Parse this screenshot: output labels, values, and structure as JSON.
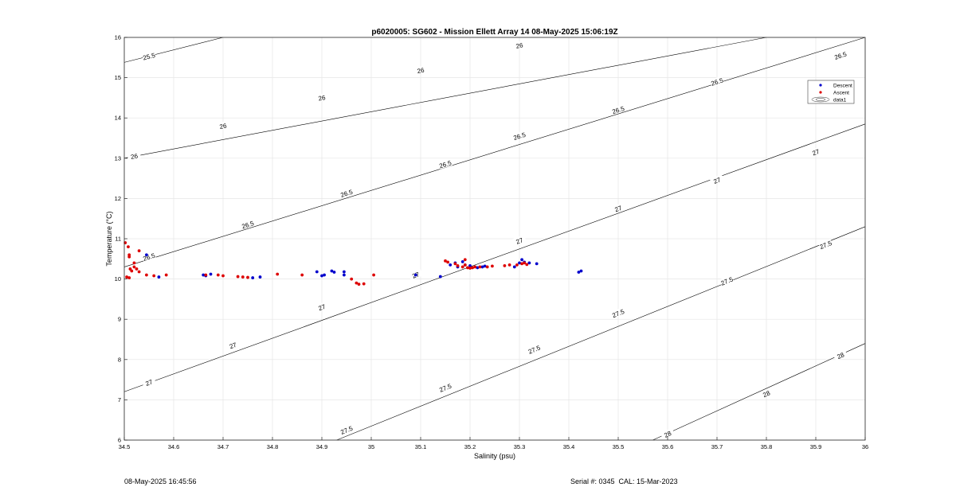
{
  "chart_data": {
    "type": "scatter",
    "title": "p6020005: SG602 - Mission Ellett Array 14 08-May-2025 15:06:19Z",
    "xlabel": "Salinity (psu)",
    "ylabel": "Temperature (°C)",
    "xlim": [
      34.5,
      36
    ],
    "ylim": [
      6,
      16
    ],
    "xticks": [
      "34.5",
      "34.6",
      "34.7",
      "34.8",
      "34.9",
      "35",
      "35.1",
      "35.2",
      "35.3",
      "35.4",
      "35.5",
      "35.6",
      "35.7",
      "35.8",
      "35.9",
      "36"
    ],
    "yticks": [
      "6",
      "7",
      "8",
      "9",
      "10",
      "11",
      "12",
      "13",
      "14",
      "15",
      "16"
    ],
    "grid": true,
    "legend_position": "top-right",
    "legend": [
      {
        "name": "Descent",
        "color": "#0000cc",
        "marker": "dot"
      },
      {
        "name": "Ascent",
        "color": "#dd0000",
        "marker": "dot"
      },
      {
        "name": "data1",
        "color": "#333333",
        "marker": "contour"
      }
    ],
    "series": [
      {
        "name": "Descent",
        "color": "#0000cc",
        "points": [
          [
            34.545,
            10.6
          ],
          [
            34.57,
            10.05
          ],
          [
            34.66,
            10.1
          ],
          [
            34.665,
            10.08
          ],
          [
            34.675,
            10.12
          ],
          [
            34.76,
            10.03
          ],
          [
            34.775,
            10.05
          ],
          [
            34.89,
            10.18
          ],
          [
            34.9,
            10.08
          ],
          [
            34.905,
            10.1
          ],
          [
            34.92,
            10.2
          ],
          [
            34.925,
            10.17
          ],
          [
            34.945,
            10.18
          ],
          [
            34.945,
            10.1
          ],
          [
            35.09,
            10.1
          ],
          [
            35.14,
            10.06
          ],
          [
            35.16,
            10.35
          ],
          [
            35.17,
            10.4
          ],
          [
            35.175,
            10.3
          ],
          [
            35.185,
            10.43
          ],
          [
            35.19,
            10.35
          ],
          [
            35.2,
            10.33
          ],
          [
            35.215,
            10.28
          ],
          [
            35.225,
            10.3
          ],
          [
            35.23,
            10.32
          ],
          [
            35.29,
            10.3
          ],
          [
            35.3,
            10.4
          ],
          [
            35.305,
            10.48
          ],
          [
            35.31,
            10.42
          ],
          [
            35.32,
            10.4
          ],
          [
            35.335,
            10.38
          ],
          [
            35.42,
            10.17
          ],
          [
            35.425,
            10.2
          ]
        ]
      },
      {
        "name": "Ascent",
        "color": "#dd0000",
        "points": [
          [
            34.502,
            10.9
          ],
          [
            34.508,
            10.8
          ],
          [
            34.51,
            10.6
          ],
          [
            34.51,
            10.55
          ],
          [
            34.512,
            10.25
          ],
          [
            34.515,
            10.2
          ],
          [
            34.52,
            10.4
          ],
          [
            34.52,
            10.3
          ],
          [
            34.525,
            10.25
          ],
          [
            34.53,
            10.18
          ],
          [
            34.53,
            10.7
          ],
          [
            34.505,
            10.05
          ],
          [
            34.51,
            10.03
          ],
          [
            34.545,
            10.1
          ],
          [
            34.56,
            10.08
          ],
          [
            34.585,
            10.1
          ],
          [
            34.665,
            10.1
          ],
          [
            34.69,
            10.1
          ],
          [
            34.7,
            10.08
          ],
          [
            34.73,
            10.06
          ],
          [
            34.74,
            10.05
          ],
          [
            34.75,
            10.04
          ],
          [
            34.81,
            10.12
          ],
          [
            34.86,
            10.1
          ],
          [
            34.96,
            10.0
          ],
          [
            34.97,
            9.9
          ],
          [
            34.975,
            9.87
          ],
          [
            34.985,
            9.88
          ],
          [
            35.005,
            10.1
          ],
          [
            35.15,
            10.45
          ],
          [
            35.155,
            10.42
          ],
          [
            35.17,
            10.38
          ],
          [
            35.175,
            10.33
          ],
          [
            35.185,
            10.3
          ],
          [
            35.19,
            10.35
          ],
          [
            35.19,
            10.48
          ],
          [
            35.195,
            10.28
          ],
          [
            35.2,
            10.27
          ],
          [
            35.205,
            10.28
          ],
          [
            35.21,
            10.3
          ],
          [
            35.22,
            10.3
          ],
          [
            35.235,
            10.3
          ],
          [
            35.245,
            10.32
          ],
          [
            35.27,
            10.33
          ],
          [
            35.28,
            10.35
          ],
          [
            35.295,
            10.35
          ],
          [
            35.305,
            10.38
          ],
          [
            35.31,
            10.4
          ],
          [
            35.315,
            10.36
          ]
        ]
      }
    ],
    "isopycnals": {
      "color": "#000000",
      "lines": [
        {
          "value": 25.5,
          "path": [
            [
              34.5,
              15.38
            ],
            [
              34.7,
              16.0
            ]
          ],
          "labels": [
            {
              "text": "25.5",
              "at": [
                34.55,
                15.53
              ]
            }
          ]
        },
        {
          "value": 26,
          "path": [
            [
              34.5,
              13.0
            ],
            [
              35.8,
              16.0
            ]
          ],
          "labels": [
            {
              "text": "26",
              "at": [
                34.52,
                13.05
              ]
            },
            {
              "text": "26",
              "at": [
                34.7,
                13.8
              ]
            },
            {
              "text": "26",
              "at": [
                34.9,
                14.5
              ]
            },
            {
              "text": "26",
              "at": [
                35.1,
                15.18
              ]
            },
            {
              "text": "26",
              "at": [
                35.3,
                15.8
              ]
            }
          ]
        },
        {
          "value": 26.5,
          "path": [
            [
              34.5,
              10.3
            ],
            [
              36.0,
              16.0
            ]
          ],
          "labels": [
            {
              "text": "26.5",
              "at": [
                34.55,
                10.55
              ]
            },
            {
              "text": "26.5",
              "at": [
                34.75,
                11.35
              ]
            },
            {
              "text": "26.5",
              "at": [
                34.95,
                12.13
              ]
            },
            {
              "text": "26.5",
              "at": [
                35.15,
                12.85
              ]
            },
            {
              "text": "26.5",
              "at": [
                35.3,
                13.55
              ]
            },
            {
              "text": "26.5",
              "at": [
                35.5,
                14.2
              ]
            },
            {
              "text": "26.5",
              "at": [
                35.7,
                14.9
              ]
            },
            {
              "text": "26.5",
              "at": [
                35.95,
                15.55
              ]
            }
          ]
        },
        {
          "value": 27,
          "path": [
            [
              34.5,
              7.2
            ],
            [
              36.0,
              13.85
            ]
          ],
          "labels": [
            {
              "text": "27",
              "at": [
                34.55,
                7.43
              ]
            },
            {
              "text": "27",
              "at": [
                34.72,
                8.35
              ]
            },
            {
              "text": "27",
              "at": [
                34.9,
                9.3
              ]
            },
            {
              "text": "27",
              "at": [
                35.09,
                10.1
              ]
            },
            {
              "text": "27",
              "at": [
                35.3,
                10.95
              ]
            },
            {
              "text": "27",
              "at": [
                35.5,
                11.75
              ]
            },
            {
              "text": "27",
              "at": [
                35.7,
                12.45
              ]
            },
            {
              "text": "27",
              "at": [
                35.9,
                13.15
              ]
            }
          ]
        },
        {
          "value": 27.5,
          "path": [
            [
              34.93,
              6.0
            ],
            [
              36.0,
              11.3
            ]
          ],
          "labels": [
            {
              "text": "27.5",
              "at": [
                34.95,
                6.25
              ]
            },
            {
              "text": "27.5",
              "at": [
                35.15,
                7.3
              ]
            },
            {
              "text": "27.5",
              "at": [
                35.33,
                8.25
              ]
            },
            {
              "text": "27.5",
              "at": [
                35.5,
                9.15
              ]
            },
            {
              "text": "27.5",
              "at": [
                35.72,
                9.95
              ]
            },
            {
              "text": "27.5",
              "at": [
                35.92,
                10.85
              ]
            }
          ]
        },
        {
          "value": 28,
          "path": [
            [
              35.57,
              6.0
            ],
            [
              36.0,
              8.4
            ]
          ],
          "labels": [
            {
              "text": "28",
              "at": [
                35.6,
                6.15
              ]
            },
            {
              "text": "28",
              "at": [
                35.8,
                7.15
              ]
            },
            {
              "text": "28",
              "at": [
                35.95,
                8.1
              ]
            }
          ]
        }
      ]
    }
  },
  "footer": {
    "timestamp": "08-May-2025 16:45:56",
    "serial": "Serial #: 0345  CAL: 15-Mar-2023"
  }
}
